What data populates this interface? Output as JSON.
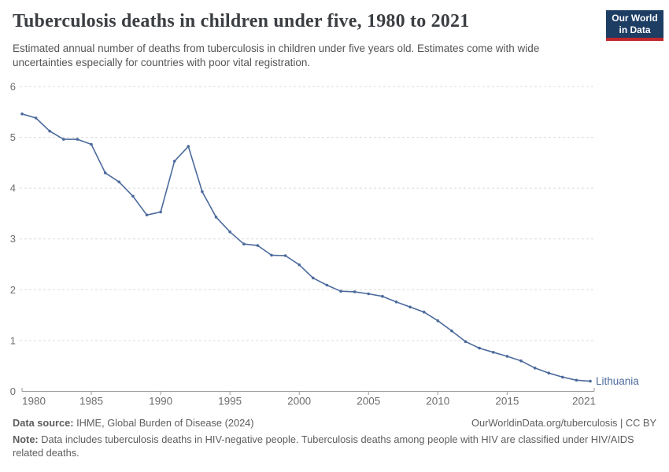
{
  "header": {
    "title": "Tuberculosis deaths in children under five, 1980 to 2021",
    "subtitle": "Estimated annual number of deaths from tuberculosis in children under five years old. Estimates come with wide uncertainties especially for countries with poor vital registration.",
    "logo": {
      "line1": "Our World",
      "line2": "in Data"
    }
  },
  "chart_data": {
    "type": "line",
    "title": "Tuberculosis deaths in children under five, 1980 to 2021",
    "entity": "Lithuania",
    "xlabel": "",
    "ylabel": "",
    "ylim": [
      0,
      6
    ],
    "yticks": [
      0,
      1,
      2,
      3,
      4,
      5,
      6
    ],
    "xticks": [
      1980,
      1985,
      1990,
      1995,
      2000,
      2005,
      2010,
      2015,
      2021
    ],
    "grid": "horizontal-dashed",
    "legend_position": "end-of-line-label",
    "line_color": "#4c6a9c",
    "x": [
      1980,
      1981,
      1982,
      1983,
      1984,
      1985,
      1986,
      1987,
      1988,
      1989,
      1990,
      1991,
      1992,
      1993,
      1994,
      1995,
      1996,
      1997,
      1998,
      1999,
      2000,
      2001,
      2002,
      2003,
      2004,
      2005,
      2006,
      2007,
      2008,
      2009,
      2010,
      2011,
      2012,
      2013,
      2014,
      2015,
      2016,
      2017,
      2018,
      2019,
      2020,
      2021
    ],
    "values": [
      5.46,
      5.38,
      5.12,
      4.96,
      4.96,
      4.86,
      4.3,
      4.12,
      3.84,
      3.47,
      3.53,
      4.53,
      4.82,
      3.93,
      3.43,
      3.14,
      2.9,
      2.87,
      2.68,
      2.67,
      2.49,
      2.23,
      2.09,
      1.97,
      1.96,
      1.92,
      1.87,
      1.76,
      1.66,
      1.56,
      1.39,
      1.19,
      0.98,
      0.85,
      0.77,
      0.69,
      0.6,
      0.46,
      0.36,
      0.28,
      0.22,
      0.2
    ]
  },
  "footer": {
    "source_label": "Data source:",
    "source_text": " IHME, Global Burden of Disease (2024)",
    "link_text": "OurWorldinData.org/tuberculosis | CC BY",
    "note_label": "Note:",
    "note_text": " Data includes tuberculosis deaths in HIV-negative people. Tuberculosis deaths among people with HIV are classified under HIV/AIDS related deaths."
  },
  "colors": {
    "line": "#4c6a9c",
    "title_text": "#3b3e42",
    "subtitle_text": "#555555",
    "axis_text": "#6e6e6e",
    "gridline": "#dcdcdc",
    "axis_line": "#9a9a9a",
    "footer_text": "#5d5d5d",
    "logo_bg": "#1d3d63",
    "logo_stripe": "#c0282d"
  }
}
